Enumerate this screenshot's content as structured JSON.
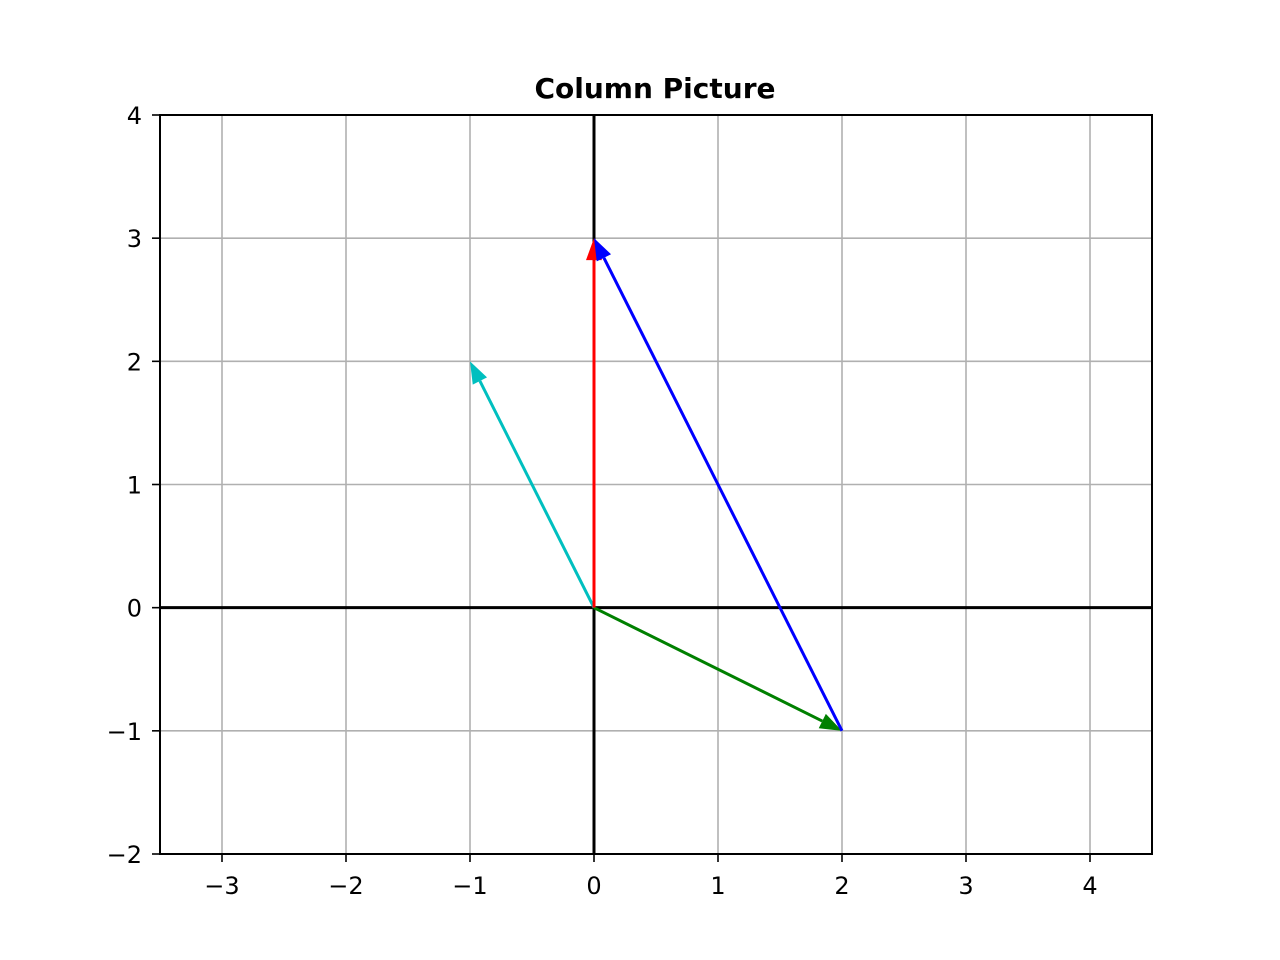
{
  "chart_data": {
    "type": "vector",
    "title": "Column Picture",
    "xlabel": "",
    "ylabel": "",
    "xlim": [
      -3.5,
      4.5
    ],
    "ylim": [
      -2,
      4
    ],
    "x_ticks": [
      -3,
      -2,
      -1,
      0,
      1,
      2,
      3,
      4
    ],
    "y_ticks": [
      -2,
      -1,
      0,
      1,
      2,
      3,
      4
    ],
    "x_tick_labels": [
      "−3",
      "−2",
      "−1",
      "0",
      "1",
      "2",
      "3",
      "4"
    ],
    "y_tick_labels": [
      "−2",
      "−1",
      "0",
      "1",
      "2",
      "3",
      "4"
    ],
    "grid": true,
    "axis_lines": {
      "x": 0,
      "y": 0,
      "color": "#000000"
    },
    "vectors": [
      {
        "from": [
          0,
          0
        ],
        "to": [
          2,
          -1
        ],
        "color": "#008000"
      },
      {
        "from": [
          0,
          0
        ],
        "to": [
          -1,
          2
        ],
        "color": "#00bfbf"
      },
      {
        "from": [
          0,
          0
        ],
        "to": [
          0,
          3
        ],
        "color": "#ff0000"
      },
      {
        "from": [
          2,
          -1
        ],
        "to": [
          0,
          3
        ],
        "color": "#0000ff"
      }
    ]
  }
}
